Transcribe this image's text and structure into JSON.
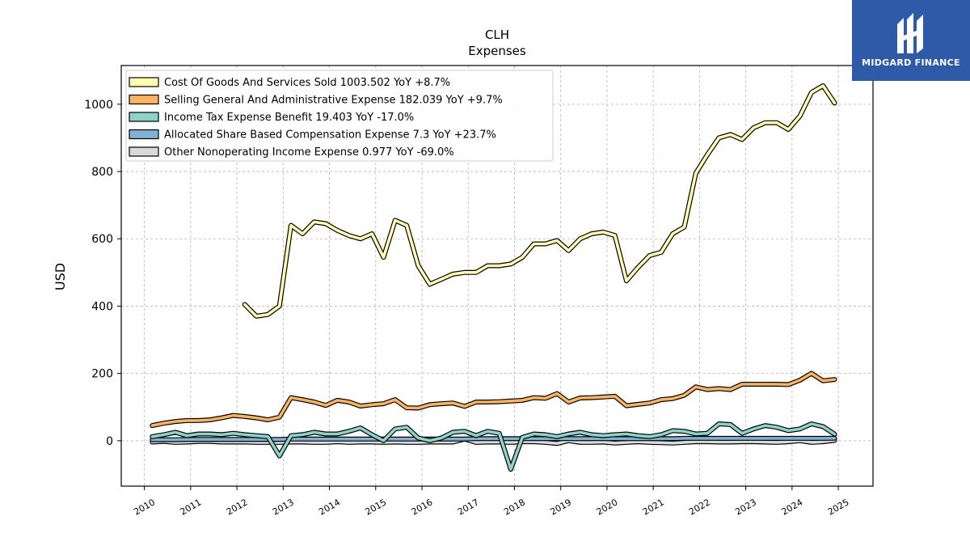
{
  "brand": {
    "name": "MIDGARD FINANCE",
    "bg_color": "#2f5aa8"
  },
  "chart_data": {
    "type": "line",
    "title": "CLH",
    "subtitle": "Expenses",
    "ylabel": "USD",
    "xlabel": "",
    "ylim": [
      -135,
      1115
    ],
    "xlim": [
      2009.5,
      2025.75
    ],
    "yticks": [
      0,
      200,
      400,
      600,
      800,
      1000
    ],
    "xticks": [
      "2010",
      "2011",
      "2012",
      "2013",
      "2014",
      "2015",
      "2016",
      "2017",
      "2018",
      "2019",
      "2020",
      "2021",
      "2022",
      "2023",
      "2024",
      "2025"
    ],
    "grid": true,
    "legend_position": "top-left",
    "series": [
      {
        "name": "Cost Of Goods And Services Sold  1003.502 YoY +8.7%",
        "color": "#ffffb3",
        "x": [
          2012.17,
          2012.42,
          2012.67,
          2012.92,
          2013.17,
          2013.42,
          2013.67,
          2013.92,
          2014.17,
          2014.42,
          2014.67,
          2014.92,
          2015.17,
          2015.42,
          2015.67,
          2015.92,
          2016.17,
          2016.42,
          2016.67,
          2016.92,
          2017.17,
          2017.42,
          2017.67,
          2017.92,
          2018.17,
          2018.42,
          2018.67,
          2018.92,
          2019.17,
          2019.42,
          2019.67,
          2019.92,
          2020.17,
          2020.42,
          2020.67,
          2020.92,
          2021.17,
          2021.42,
          2021.67,
          2021.92,
          2022.17,
          2022.42,
          2022.67,
          2022.92,
          2023.17,
          2023.42,
          2023.67,
          2023.92,
          2024.17,
          2024.42,
          2024.67,
          2024.92
        ],
        "y": [
          405,
          370,
          375,
          400,
          640,
          615,
          650,
          645,
          625,
          610,
          600,
          615,
          545,
          655,
          640,
          520,
          465,
          480,
          495,
          500,
          500,
          520,
          520,
          525,
          545,
          585,
          585,
          595,
          565,
          600,
          615,
          620,
          610,
          475,
          515,
          550,
          560,
          615,
          635,
          795,
          850,
          900,
          910,
          895,
          930,
          945,
          945,
          925,
          965,
          1035,
          1055,
          1003.5
        ]
      },
      {
        "name": "Selling General And Administrative Expense  182.039 YoY +9.7%",
        "color": "#fdb462",
        "x": [
          2010.17,
          2010.42,
          2010.67,
          2010.92,
          2011.17,
          2011.42,
          2011.67,
          2011.92,
          2012.17,
          2012.42,
          2012.67,
          2012.92,
          2013.17,
          2013.42,
          2013.67,
          2013.92,
          2014.17,
          2014.42,
          2014.67,
          2014.92,
          2015.17,
          2015.42,
          2015.67,
          2015.92,
          2016.17,
          2016.42,
          2016.67,
          2016.92,
          2017.17,
          2017.42,
          2017.67,
          2017.92,
          2018.17,
          2018.42,
          2018.67,
          2018.92,
          2019.17,
          2019.42,
          2019.67,
          2019.92,
          2020.17,
          2020.42,
          2020.67,
          2020.92,
          2021.17,
          2021.42,
          2021.67,
          2021.92,
          2022.17,
          2022.42,
          2022.67,
          2022.92,
          2023.17,
          2023.42,
          2023.67,
          2023.92,
          2024.17,
          2024.42,
          2024.67,
          2024.92
        ],
        "y": [
          45,
          52,
          57,
          60,
          60,
          62,
          68,
          75,
          72,
          68,
          62,
          70,
          128,
          122,
          115,
          105,
          120,
          115,
          103,
          107,
          110,
          122,
          98,
          97,
          107,
          110,
          112,
          102,
          115,
          115,
          116,
          118,
          120,
          128,
          126,
          140,
          115,
          127,
          128,
          130,
          132,
          104,
          108,
          112,
          122,
          125,
          135,
          160,
          152,
          155,
          152,
          168,
          168,
          168,
          168,
          167,
          180,
          200,
          178,
          182
        ]
      },
      {
        "name": "Income Tax Expense Benefit  19.403 YoY -17.0%",
        "color": "#8dd3c7",
        "x": [
          2010.17,
          2010.42,
          2010.67,
          2010.92,
          2011.17,
          2011.42,
          2011.67,
          2011.92,
          2012.17,
          2012.42,
          2012.67,
          2012.92,
          2013.17,
          2013.42,
          2013.67,
          2013.92,
          2014.17,
          2014.42,
          2014.67,
          2014.92,
          2015.17,
          2015.42,
          2015.67,
          2015.92,
          2016.17,
          2016.42,
          2016.67,
          2016.92,
          2017.17,
          2017.42,
          2017.67,
          2017.92,
          2018.17,
          2018.42,
          2018.67,
          2018.92,
          2019.17,
          2019.42,
          2019.67,
          2019.92,
          2020.17,
          2020.42,
          2020.67,
          2020.92,
          2021.17,
          2021.42,
          2021.67,
          2021.92,
          2022.17,
          2022.42,
          2022.67,
          2022.92,
          2023.17,
          2023.42,
          2023.67,
          2023.92,
          2024.17,
          2024.42,
          2024.67,
          2024.92
        ],
        "y": [
          12,
          18,
          25,
          15,
          20,
          20,
          18,
          22,
          18,
          15,
          12,
          -45,
          15,
          18,
          25,
          20,
          20,
          28,
          38,
          18,
          0,
          35,
          40,
          8,
          0,
          8,
          25,
          28,
          15,
          28,
          22,
          -85,
          10,
          20,
          18,
          12,
          20,
          25,
          18,
          15,
          18,
          20,
          15,
          12,
          18,
          30,
          28,
          20,
          22,
          50,
          48,
          22,
          35,
          45,
          40,
          30,
          35,
          50,
          42,
          19.4
        ]
      },
      {
        "name": "Allocated Share Based Compensation Expense  7.3 YoY +23.7%",
        "color": "#80b1d3",
        "x": [
          2010.17,
          2010.42,
          2010.67,
          2010.92,
          2011.17,
          2011.42,
          2011.67,
          2011.92,
          2012.17,
          2012.42,
          2012.67,
          2012.92,
          2013.17,
          2013.42,
          2013.67,
          2013.92,
          2014.17,
          2014.42,
          2014.67,
          2014.92,
          2015.17,
          2015.42,
          2015.67,
          2015.92,
          2016.17,
          2016.42,
          2016.67,
          2016.92,
          2017.17,
          2017.42,
          2017.67,
          2017.92,
          2018.17,
          2018.42,
          2018.67,
          2018.92,
          2019.17,
          2019.42,
          2019.67,
          2019.92,
          2020.17,
          2020.42,
          2020.67,
          2020.92,
          2021.17,
          2021.42,
          2021.67,
          2021.92,
          2022.17,
          2022.42,
          2022.67,
          2022.92,
          2023.17,
          2023.42,
          2023.67,
          2023.92,
          2024.17,
          2024.42,
          2024.67,
          2024.92
        ],
        "y": [
          3,
          3,
          3,
          4,
          4,
          4,
          4,
          4,
          4,
          4,
          4,
          4,
          5,
          5,
          5,
          5,
          5,
          5,
          5,
          5,
          5,
          5,
          5,
          5,
          5,
          5,
          5,
          5,
          6,
          6,
          6,
          6,
          6,
          6,
          6,
          6,
          6,
          6,
          6,
          6,
          6,
          6,
          6,
          6,
          6,
          6,
          7,
          7,
          7,
          7,
          7,
          7,
          7,
          7,
          7,
          7,
          7,
          7,
          7,
          7.3
        ]
      },
      {
        "name": "Other Nonoperating Income Expense  0.977 YoY -69.0%",
        "color": "#d9d9d9",
        "x": [
          2010.17,
          2010.42,
          2010.67,
          2010.92,
          2011.17,
          2011.42,
          2011.67,
          2011.92,
          2012.17,
          2012.42,
          2012.67,
          2012.92,
          2013.17,
          2013.42,
          2013.67,
          2013.92,
          2014.17,
          2014.42,
          2014.67,
          2014.92,
          2015.17,
          2015.42,
          2015.67,
          2015.92,
          2016.17,
          2016.42,
          2016.67,
          2016.92,
          2017.17,
          2017.42,
          2017.67,
          2017.92,
          2018.17,
          2018.42,
          2018.67,
          2018.92,
          2019.17,
          2019.42,
          2019.67,
          2019.92,
          2020.17,
          2020.42,
          2020.67,
          2020.92,
          2021.17,
          2021.42,
          2021.67,
          2021.92,
          2022.17,
          2022.42,
          2022.67,
          2022.92,
          2023.17,
          2023.42,
          2023.67,
          2023.92,
          2024.17,
          2024.42,
          2024.67,
          2024.92
        ],
        "y": [
          -4,
          -2,
          -5,
          -4,
          -2,
          -2,
          -4,
          -4,
          -4,
          -5,
          -5,
          -5,
          -4,
          -4,
          -5,
          -5,
          -3,
          -5,
          -4,
          -4,
          -5,
          -4,
          -5,
          -5,
          -4,
          -4,
          -4,
          5,
          -5,
          -4,
          -4,
          -5,
          -3,
          -3,
          -5,
          -8,
          0,
          -5,
          -5,
          -4,
          -7,
          -5,
          -3,
          -5,
          -6,
          -7,
          -5,
          -3,
          -3,
          -4,
          -4,
          -3,
          -3,
          -4,
          -5,
          -3,
          0,
          -5,
          -3,
          0.977
        ]
      }
    ]
  }
}
